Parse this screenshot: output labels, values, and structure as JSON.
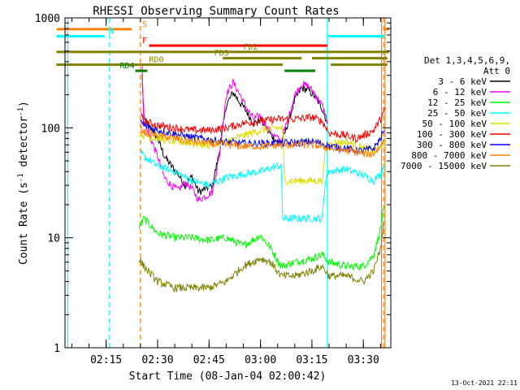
{
  "chart_data": {
    "type": "line",
    "title": "RHESSI Observing Summary Count Rates",
    "xlabel": "Start Time (08-Jan-04 02:00:42)",
    "ylabel": "Count Rate (s^-1 detector^-1)",
    "ylabel_parts": {
      "main": "Count Rate (s",
      "sup1": "-1",
      "mid": " detector",
      "sup2": "-1",
      "end": ")"
    },
    "yscale": "log",
    "ylim": [
      1,
      1000
    ],
    "xlim_minutes": [
      3.0,
      98.0
    ],
    "x_unit": "minutes after 02:00",
    "xticks": [
      {
        "t": 15,
        "label": "02:15"
      },
      {
        "t": 30,
        "label": "02:30"
      },
      {
        "t": 45,
        "label": "02:45"
      },
      {
        "t": 60,
        "label": "03:00"
      },
      {
        "t": 75,
        "label": "03:15"
      },
      {
        "t": 90,
        "label": "03:30"
      }
    ],
    "yticks": [
      {
        "v": 1,
        "label": "1"
      },
      {
        "v": 10,
        "label": "10"
      },
      {
        "v": 100,
        "label": "100"
      },
      {
        "v": 1000,
        "label": "1000"
      }
    ],
    "legend_title_lines": [
      "Det 1,3,4,5,6,9,",
      "Att 0"
    ],
    "series": [
      {
        "name": "3 - 6 keV",
        "color": "#000000",
        "x": [
          25.5,
          26,
          28,
          30,
          32,
          34,
          36,
          38,
          40,
          42,
          44,
          46,
          48,
          50,
          52,
          54,
          56,
          58,
          60,
          62,
          64,
          66,
          68,
          70,
          72,
          74,
          76,
          78,
          79.5
        ],
        "values": [
          300,
          120,
          100,
          80,
          55,
          45,
          38,
          30,
          36,
          26,
          28,
          30,
          60,
          160,
          210,
          170,
          140,
          110,
          120,
          95,
          80,
          70,
          110,
          180,
          230,
          220,
          190,
          150,
          110
        ]
      },
      {
        "name": "6 - 12 keV",
        "color": "#ff00ff",
        "x": [
          25.5,
          26,
          28,
          30,
          32,
          34,
          36,
          38,
          40,
          42,
          44,
          46,
          48,
          50,
          52,
          54,
          56,
          58,
          60,
          62,
          64,
          66,
          68,
          70,
          72,
          74,
          76,
          78,
          79.5
        ],
        "values": [
          350,
          110,
          80,
          55,
          35,
          30,
          27,
          32,
          28,
          22,
          24,
          26,
          55,
          200,
          260,
          200,
          150,
          120,
          130,
          100,
          85,
          75,
          120,
          200,
          250,
          240,
          200,
          160,
          115
        ]
      },
      {
        "name": "12 - 25 keV",
        "color": "#00ff00",
        "x": [
          24.5,
          26,
          30,
          35,
          40,
          45,
          50,
          55,
          60,
          63,
          66,
          70,
          75,
          78,
          80,
          85,
          90,
          93,
          95,
          96
        ],
        "values": [
          12,
          15,
          11,
          10,
          10,
          9.5,
          10,
          8.5,
          10.5,
          8,
          5.5,
          6,
          6.5,
          7,
          6,
          5.5,
          5.5,
          7,
          12,
          19
        ]
      },
      {
        "name": "25 - 50 keV",
        "color": "#00ffff",
        "x": [
          25,
          26,
          30,
          35,
          40,
          45,
          50,
          55,
          60,
          66,
          66.5,
          70,
          75,
          78,
          79,
          80,
          85,
          90,
          93,
          95,
          96
        ],
        "values": [
          60,
          55,
          45,
          40,
          33,
          30,
          35,
          38,
          40,
          46,
          15,
          15,
          15,
          15,
          35,
          40,
          42,
          37,
          33,
          38,
          45
        ]
      },
      {
        "name": "50 - 100 keV",
        "color": "#dddd00",
        "x": [
          25,
          26,
          30,
          35,
          40,
          45,
          50,
          55,
          60,
          65,
          66.5,
          67,
          70,
          75,
          78,
          79,
          80,
          85,
          90,
          93,
          95,
          96
        ],
        "values": [
          90,
          85,
          80,
          75,
          72,
          70,
          75,
          85,
          95,
          100,
          100,
          33,
          33,
          33,
          33,
          65,
          72,
          75,
          65,
          62,
          65,
          75
        ]
      },
      {
        "name": "100 - 300 keV",
        "color": "#ff0000",
        "x": [
          25,
          26,
          30,
          35,
          40,
          45,
          50,
          55,
          60,
          65,
          70,
          75,
          78,
          80,
          85,
          88,
          90,
          93,
          95,
          96.5
        ],
        "values": [
          130,
          115,
          105,
          100,
          95,
          95,
          100,
          110,
          115,
          120,
          120,
          125,
          115,
          90,
          85,
          80,
          85,
          95,
          120,
          150
        ]
      },
      {
        "name": "300 - 800 keV",
        "color": "#0000ff",
        "x": [
          25,
          26,
          30,
          35,
          40,
          45,
          50,
          55,
          60,
          65,
          70,
          75,
          78,
          80,
          85,
          88,
          90,
          93,
          95,
          96
        ],
        "values": [
          115,
          105,
          95,
          88,
          82,
          78,
          74,
          72,
          72,
          73,
          73,
          75,
          72,
          68,
          65,
          62,
          62,
          65,
          80,
          95
        ]
      },
      {
        "name": "800 - 7000 keV",
        "color": "#ff8000",
        "x": [
          25,
          26,
          30,
          35,
          40,
          45,
          50,
          55,
          60,
          65,
          70,
          75,
          78,
          80,
          85,
          88,
          90,
          93,
          95,
          96
        ],
        "values": [
          100,
          92,
          85,
          80,
          75,
          72,
          70,
          68,
          68,
          69,
          70,
          70,
          68,
          65,
          62,
          60,
          58,
          58,
          68,
          80
        ]
      },
      {
        "name": "7000 - 15000 keV",
        "color": "#808000",
        "x": [
          24.5,
          26,
          30,
          35,
          40,
          45,
          50,
          55,
          60,
          63,
          66,
          70,
          75,
          78,
          80,
          85,
          90,
          93,
          95,
          96
        ],
        "values": [
          6.5,
          5.5,
          4,
          3.5,
          3.5,
          3.5,
          4,
          5.5,
          6.5,
          6,
          4.5,
          4.5,
          5,
          5.5,
          4.5,
          4.5,
          4,
          5,
          8,
          14
        ]
      }
    ],
    "vertical_lines": [
      {
        "t": 3.8,
        "color": "#00ffff",
        "style": "solid"
      },
      {
        "t": 16.0,
        "color": "#00ffff",
        "style": "dashed"
      },
      {
        "t": 25.0,
        "color": "#ff8000",
        "style": "dashed"
      },
      {
        "t": 79.5,
        "color": "#00ffff",
        "style": "solid"
      },
      {
        "t": 95.3,
        "color": "#ff8000",
        "style": "solid"
      },
      {
        "t": 95.9,
        "color": "#ff8000",
        "style": "dashed"
      },
      {
        "t": 96.3,
        "color": "#ff8000",
        "style": "solid"
      }
    ],
    "flag_bars": [
      {
        "label": "S",
        "color": "#ff8000",
        "label_at": 25.5,
        "y": 790,
        "segments": [
          [
            0.5,
            22.5
          ],
          [
            95.8,
            97.5
          ]
        ]
      },
      {
        "label": "N",
        "color": "#00ffff",
        "label_at": 15.7,
        "y": 680,
        "segments": [
          [
            0.5,
            14.5
          ],
          [
            79.8,
            96.0
          ]
        ]
      },
      {
        "label": "F",
        "color": "#ff0000",
        "label_at": 25.5,
        "y": 560,
        "segments": [
          [
            27.5,
            79.5
          ]
        ]
      },
      {
        "label": "FD2",
        "color": "#808000",
        "label_at": 55.0,
        "y": 490,
        "segments": [
          [
            0.5,
            97.5
          ]
        ]
      },
      {
        "label": "FD3",
        "color": "#808000",
        "label_at": 46.5,
        "y": 430,
        "segments": [
          [
            49.0,
            72.0
          ],
          [
            75.0,
            97.0
          ]
        ]
      },
      {
        "label": "RD0",
        "color": "#808000",
        "label_at": 27.5,
        "y": 375,
        "segments": [
          [
            0.5,
            66.5
          ],
          [
            80.5,
            97.0
          ]
        ]
      },
      {
        "label": "RD4",
        "color": "#008000",
        "label_at": 19.0,
        "y": 330,
        "segments": [
          [
            23.5,
            27.0
          ],
          [
            67.0,
            76.0
          ]
        ]
      }
    ]
  },
  "footer": {
    "timestamp": "13-Oct-2021 22:11"
  }
}
